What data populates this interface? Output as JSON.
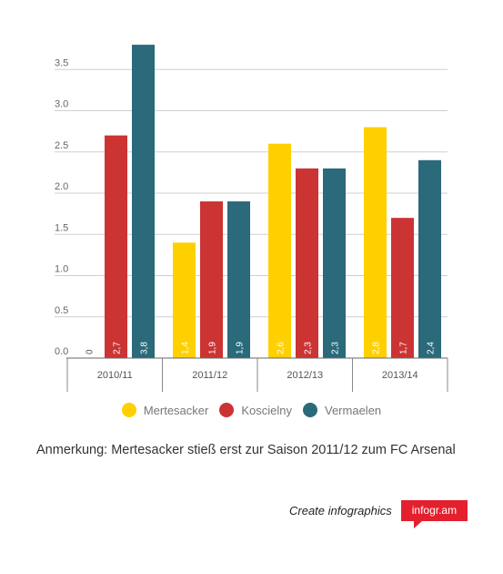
{
  "chart_data": {
    "type": "bar",
    "categories": [
      "2010/11",
      "2011/12",
      "2012/13",
      "2013/14"
    ],
    "series": [
      {
        "name": "Mertesacker",
        "color": "#ffd000",
        "values": [
          0,
          1.4,
          2.6,
          2.8
        ],
        "labels": [
          "0",
          "1,4",
          "2,6",
          "2,8"
        ]
      },
      {
        "name": "Koscielny",
        "color": "#cc3333",
        "values": [
          2.7,
          1.9,
          2.3,
          1.7
        ],
        "labels": [
          "2,7",
          "1,9",
          "2,3",
          "1,7"
        ]
      },
      {
        "name": "Vermaelen",
        "color": "#2a6a7a",
        "values": [
          3.8,
          1.9,
          2.3,
          2.4
        ],
        "labels": [
          "3,8",
          "1,9",
          "2,3",
          "2,4"
        ]
      }
    ],
    "yticks": [
      "0.0",
      "0.5",
      "1.0",
      "1.5",
      "2.0",
      "2.5",
      "3.0",
      "3.5"
    ],
    "ylim": [
      0,
      3.8
    ],
    "grid": true,
    "legend_position": "bottom"
  },
  "note": "Anmerkung: Mertesacker stieß erst zur Saison 2011/12 zum FC Arsenal",
  "footer": {
    "create_label": "Create infographics",
    "brand_label": "infogr.am"
  }
}
